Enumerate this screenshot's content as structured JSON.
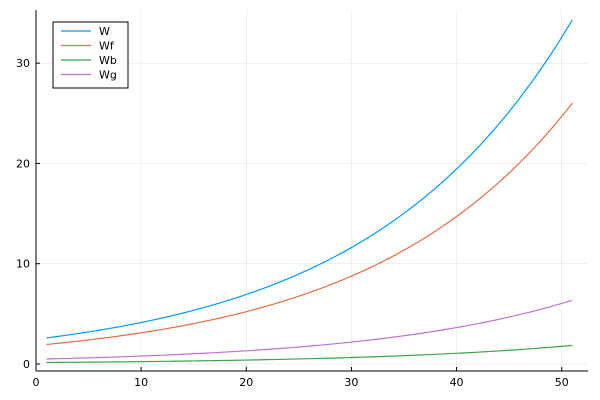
{
  "chart_data": {
    "type": "line",
    "title": "",
    "xlabel": "",
    "ylabel": "",
    "xlim": [
      0,
      52.5
    ],
    "ylim": [
      -0.7,
      35.3
    ],
    "xticks": [
      0,
      10,
      20,
      30,
      40,
      50
    ],
    "yticks": [
      0,
      10,
      20,
      30
    ],
    "grid": true,
    "legend_position": "top-left",
    "series": [
      {
        "name": "W",
        "color": "#009AFA",
        "start": 2.6,
        "end": 34.3
      },
      {
        "name": "Wf",
        "color": "#E26F46",
        "start": 1.95,
        "end": 26.0
      },
      {
        "name": "Wb",
        "color": "#3DA44D",
        "start": 0.15,
        "end": 1.85
      },
      {
        "name": "Wg",
        "color": "#C271D2",
        "start": 0.5,
        "end": 6.35
      }
    ],
    "x_start": 1,
    "x_end": 51
  }
}
